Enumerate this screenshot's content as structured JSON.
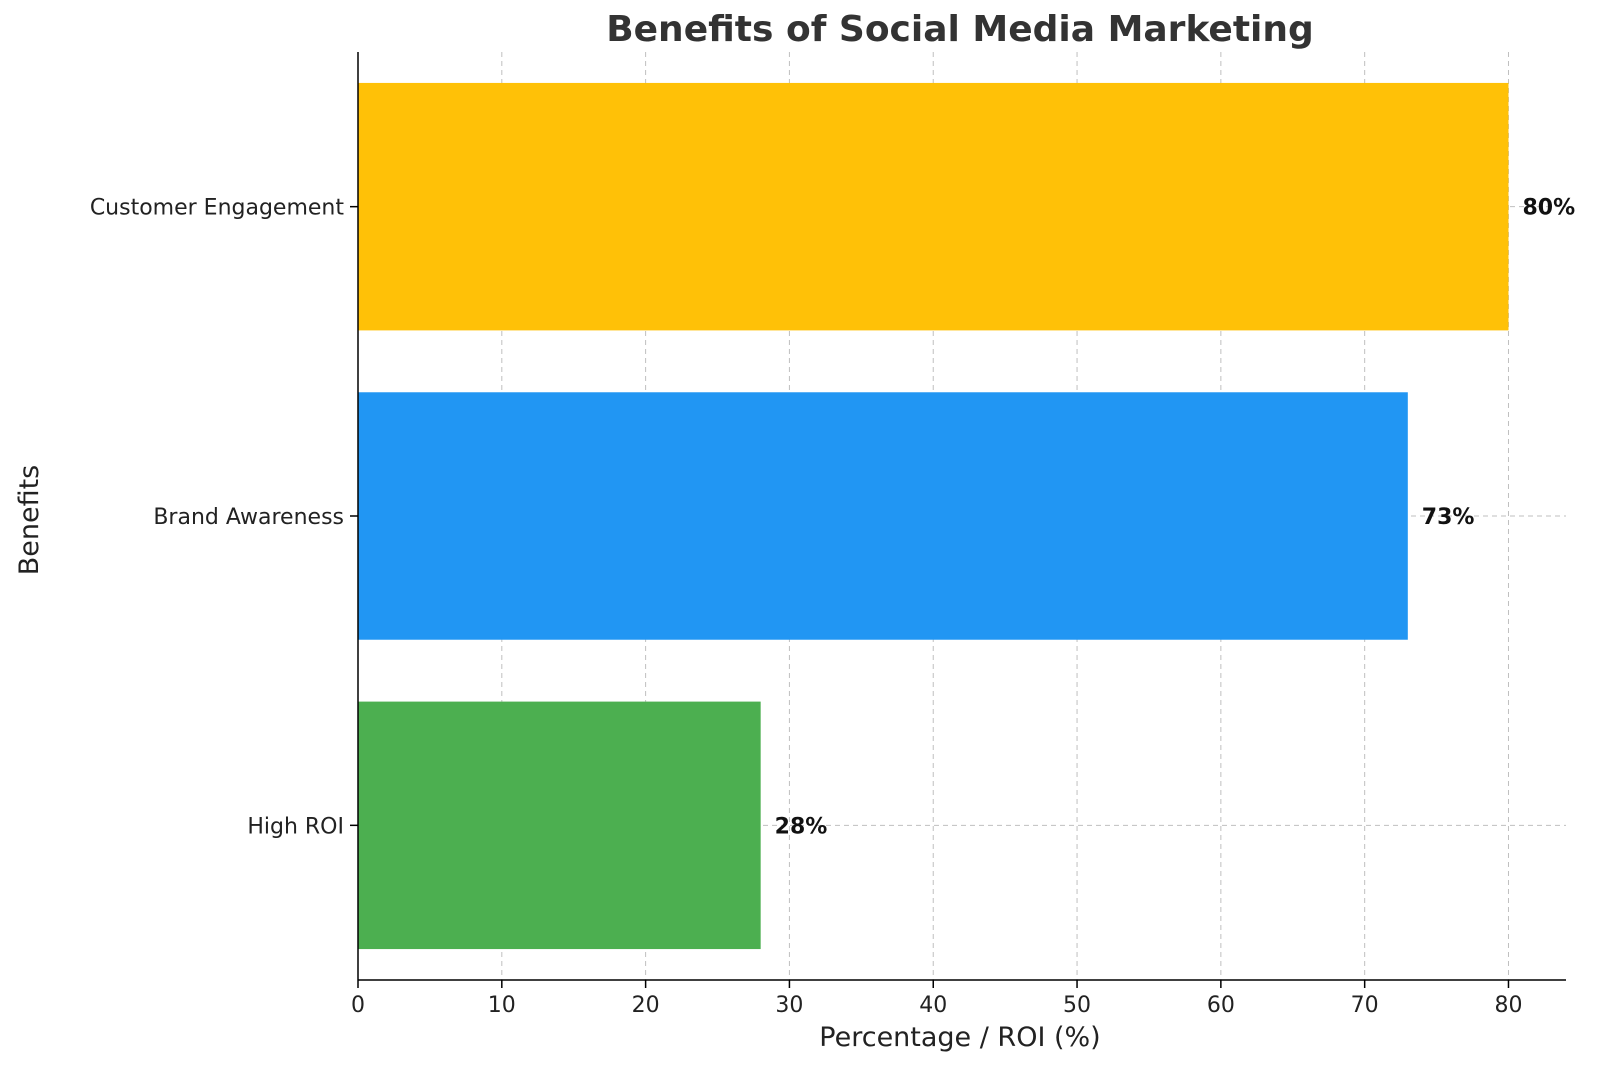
{
  "chart_data": {
    "type": "bar",
    "orientation": "horizontal",
    "title": "Benefits of Social Media Marketing",
    "xlabel": "Percentage / ROI (%)",
    "ylabel": "Benefits",
    "categories": [
      "High ROI",
      "Brand Awareness",
      "Customer Engagement"
    ],
    "values": [
      28,
      73,
      80
    ],
    "value_labels": [
      "28%",
      "73%",
      "80%"
    ],
    "colors": [
      "#4caf50",
      "#2196f3",
      "#ffc107"
    ],
    "xlim": [
      0,
      84
    ],
    "xticks": [
      0,
      10,
      20,
      30,
      40,
      50,
      60,
      70,
      80
    ],
    "grid": true
  }
}
